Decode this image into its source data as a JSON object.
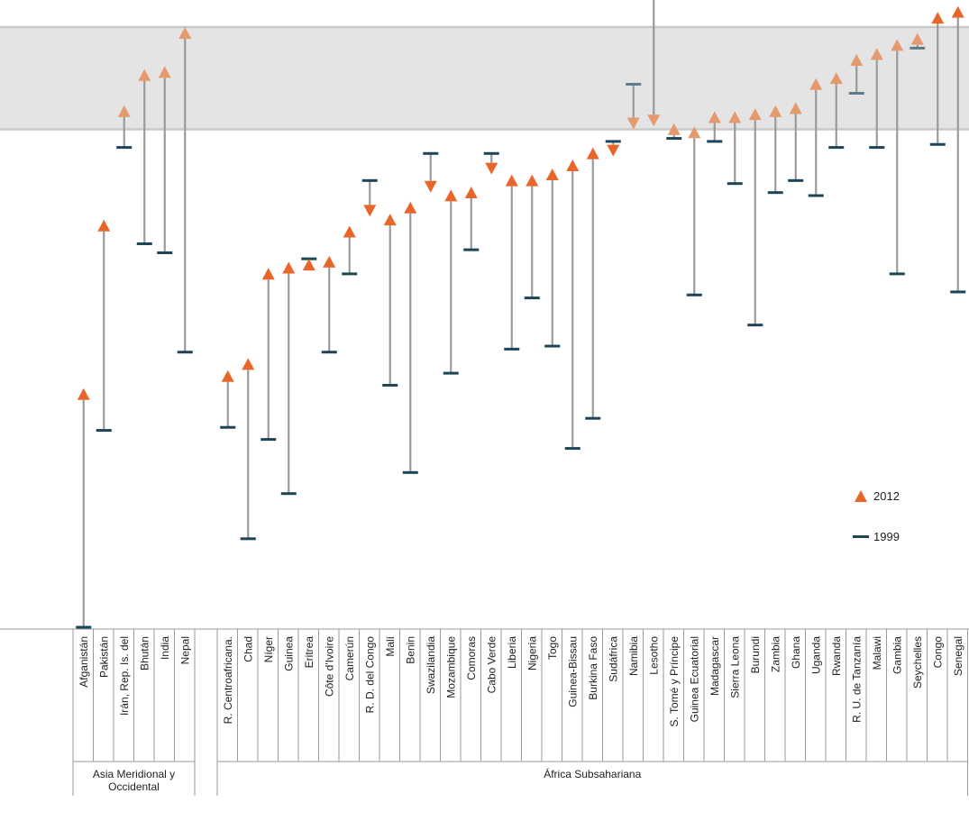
{
  "chart_data": {
    "type": "range-dot",
    "title": "",
    "xlabel": "",
    "ylabel": "",
    "ylim": [
      0,
      100
    ],
    "grid": false,
    "legend_position": "right",
    "benchmark_band": [
      83,
      100
    ],
    "legend": {
      "series_2012": "2012",
      "series_1999": "1999"
    },
    "colors": {
      "y2012": "#E8662A",
      "y2012_in_band": "#E59A6E",
      "y1999": "#1D4457",
      "y1999_in_band": "#5F7A89",
      "range_line": "#9A9A9A",
      "band_fill": "#E4E4E4",
      "band_edge": "#C8C8C8"
    },
    "groups": [
      {
        "name": "Asia Meridional y\nOccidental",
        "countries": [
          {
            "name": "Afganistán",
            "y1999": 0.3,
            "y2012": 40
          },
          {
            "name": "Pakistán",
            "y1999": 33,
            "y2012": 68
          },
          {
            "name": "Irán, Rep. Is. del",
            "y1999": 80,
            "y2012": 87
          },
          {
            "name": "Bhután",
            "y1999": 64,
            "y2012": 93
          },
          {
            "name": "India",
            "y1999": 62.5,
            "y2012": 93.5
          },
          {
            "name": "Nepal",
            "y1999": 46,
            "y2012": 100
          }
        ]
      },
      {
        "name": "África Subsahariana",
        "countries": [
          {
            "name": "R. Centroafricana.",
            "y1999": 33.5,
            "y2012": 43
          },
          {
            "name": "Chad",
            "y1999": 15,
            "y2012": 45
          },
          {
            "name": "Níger",
            "y1999": 31.5,
            "y2012": 60
          },
          {
            "name": "Guinea",
            "y1999": 22.5,
            "y2012": 61
          },
          {
            "name": "Eritrea",
            "y1999": 61.5,
            "y2012": 61.5
          },
          {
            "name": "Côte d'Ivoire",
            "y1999": 46,
            "y2012": 62
          },
          {
            "name": "Camerún",
            "y1999": 59,
            "y2012": 67
          },
          {
            "name": "R. D. del Congo",
            "y1999": 74.5,
            "y2012": 68.5
          },
          {
            "name": "Malí",
            "y1999": 40.5,
            "y2012": 69
          },
          {
            "name": "Benin",
            "y1999": 26,
            "y2012": 71
          },
          {
            "name": "Swazilandia",
            "y1999": 79,
            "y2012": 72.5
          },
          {
            "name": "Mozambique",
            "y1999": 42.5,
            "y2012": 73
          },
          {
            "name": "Comoras",
            "y1999": 63,
            "y2012": 73.5
          },
          {
            "name": "Cabo Verde",
            "y1999": 79,
            "y2012": 75.5
          },
          {
            "name": "Liberia",
            "y1999": 46.5,
            "y2012": 75.5
          },
          {
            "name": "Nigeria",
            "y1999": 55,
            "y2012": 75.5
          },
          {
            "name": "Togo",
            "y1999": 47,
            "y2012": 76.5
          },
          {
            "name": "Guinea-Bissau",
            "y1999": 30,
            "y2012": 78
          },
          {
            "name": "Burkina Faso",
            "y1999": 35,
            "y2012": 80
          },
          {
            "name": "Sudáfrica",
            "y1999": 81,
            "y2012": 78.5
          },
          {
            "name": "Namibia",
            "y1999": 90.5,
            "y2012": 83
          },
          {
            "name": "Lesotho",
            "y1999": 105,
            "y2012": 83.5
          },
          {
            "name": "S. Tomé y Príncipe",
            "y1999": 81.5,
            "y2012": 84
          },
          {
            "name": "Guinea Ecuatorial",
            "y1999": 55.5,
            "y2012": 83.5
          },
          {
            "name": "Madagascar",
            "y1999": 81,
            "y2012": 86
          },
          {
            "name": "Sierra Leona",
            "y1999": 74,
            "y2012": 86
          },
          {
            "name": "Burundi",
            "y1999": 50.5,
            "y2012": 86.5
          },
          {
            "name": "Zambia",
            "y1999": 72.5,
            "y2012": 87
          },
          {
            "name": "Ghana",
            "y1999": 74.5,
            "y2012": 87.5
          },
          {
            "name": "Uganda",
            "y1999": 72,
            "y2012": 91.5
          },
          {
            "name": "Rwanda",
            "y1999": 80,
            "y2012": 92.5
          },
          {
            "name": "R. U. de Tanzanía",
            "y1999": 89,
            "y2012": 95.5
          },
          {
            "name": "Malawi",
            "y1999": 80,
            "y2012": 96.5
          },
          {
            "name": "Gambia",
            "y1999": 59,
            "y2012": 98
          },
          {
            "name": "Seychelles",
            "y1999": 96.5,
            "y2012": 99
          },
          {
            "name": "Congo",
            "y1999": 80.5,
            "y2012": 102.5
          },
          {
            "name": "Senegal",
            "y1999": 56,
            "y2012": 103.5
          }
        ]
      }
    ]
  }
}
